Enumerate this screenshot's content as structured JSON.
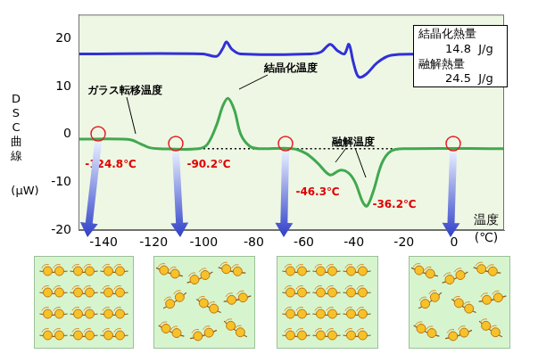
{
  "chart_data": {
    "type": "line",
    "y_label": [
      "DSC曲線",
      "(μW)"
    ],
    "x_label": [
      "温度",
      "(℃)"
    ],
    "xlim": [
      -150,
      20
    ],
    "xticks": [
      -140,
      -120,
      -100,
      -80,
      -60,
      -40,
      -20,
      0
    ],
    "ylim": [
      -20,
      25
    ],
    "yticks": [
      -20,
      -10,
      0,
      10,
      20
    ],
    "grid": false,
    "series": [
      {
        "color": "#3030d8",
        "line_style": "solid",
        "x": [
          -150,
          -100.2,
          -94.8,
          -92.3,
          -90.9,
          -88.8,
          -85.2,
          -57.3,
          -53.1,
          -49.5,
          -46.6,
          -43.8,
          -42,
          -40.2,
          -38.1,
          -35.2,
          -30.6,
          -25.2,
          -10.9,
          20
        ],
        "values": [
          16.8,
          16.8,
          16.3,
          18,
          19.3,
          17.8,
          16.8,
          16.8,
          17.2,
          18.8,
          17.5,
          16.8,
          18.8,
          15,
          12,
          12.5,
          15,
          16.5,
          16.7,
          16.8
        ]
      },
      {
        "color": "#40a850",
        "line_style": "solid",
        "x": [
          -150,
          -132.3,
          -128.8,
          -125.2,
          -121.6,
          -118.1,
          -102,
          -98.4,
          -94.8,
          -92.3,
          -90.2,
          -87.7,
          -85.2,
          -81.6,
          -78,
          -64.5,
          -59.1,
          -54.5,
          -49.5,
          -45.6,
          -42.3,
          -39.5,
          -36.6,
          -34.8,
          -32.3,
          -28.8,
          -25.2,
          -19.8,
          20
        ],
        "values": [
          -1,
          -1,
          -1.2,
          -2,
          -2.8,
          -3,
          -3,
          -2,
          2,
          6,
          7.5,
          5,
          0,
          -2.5,
          -3,
          -3,
          -4,
          -6,
          -8.5,
          -7.5,
          -8,
          -10,
          -14,
          -15,
          -12,
          -6,
          -3.5,
          -3,
          -3
        ]
      },
      {
        "color": "#000000",
        "line_style": "dotted",
        "x": [
          -118,
          -16
        ],
        "values": [
          -3,
          -3
        ]
      }
    ],
    "annotations": [
      "ガラス転移温度",
      "結晶化温度",
      "融解温度"
    ],
    "temperature_labels": [
      "-124.8℃",
      "-90.2℃",
      "-46.3℃",
      "-36.2℃"
    ],
    "info_box": [
      "結晶化熱量",
      "14.8  J/g",
      "融解熱量",
      "24.5  J/g"
    ]
  }
}
